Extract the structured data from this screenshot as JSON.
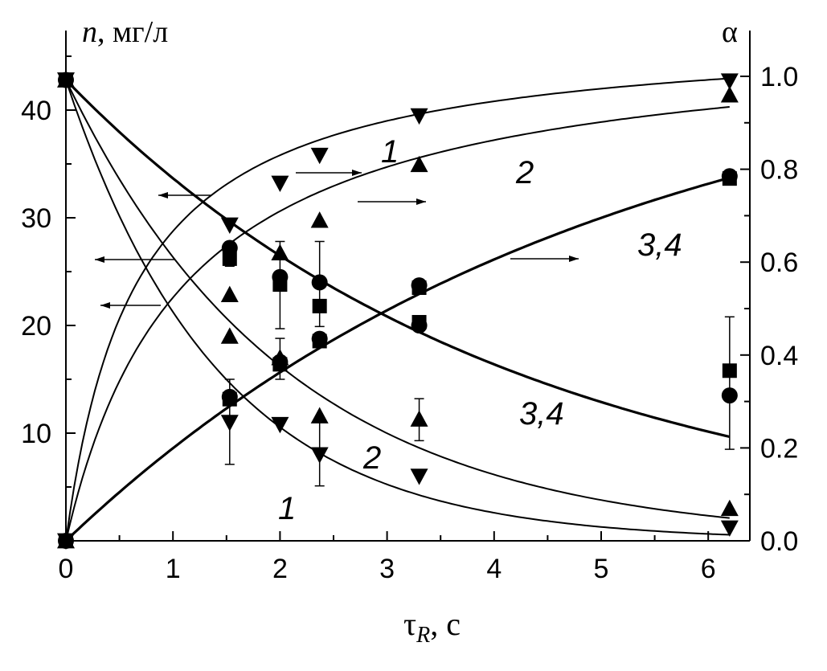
{
  "chart_data": {
    "type": "scatter",
    "title": "",
    "xlabel": {
      "main": "τ",
      "sub": "R",
      "suffix": ", с"
    },
    "ylabel_left": {
      "italic": "n",
      "rest": ", мг/л"
    },
    "ylabel_right": "α",
    "xlim": [
      0,
      6.5
    ],
    "ylim_left": [
      0,
      47
    ],
    "ylim_right": [
      0,
      1.1
    ],
    "x_ticks": [
      "0",
      "1",
      "2",
      "3",
      "4",
      "5",
      "6"
    ],
    "y_left_ticks": [
      "10",
      "20",
      "30",
      "40"
    ],
    "y_right_ticks": [
      "0.0",
      "0.2",
      "0.4",
      "0.6",
      "0.8",
      "1.0"
    ],
    "grid": false,
    "series": [
      {
        "curve": "1",
        "axis": "left",
        "marker": "triangle-down",
        "x": [
          0,
          1.53,
          2.0,
          2.37,
          3.3,
          6.2
        ],
        "y": [
          42.8,
          11.0,
          10.8,
          8.0,
          6.0,
          1.2
        ]
      },
      {
        "curve": "2",
        "axis": "left",
        "marker": "triangle-up",
        "x": [
          0,
          1.53,
          2.0,
          2.37,
          3.3,
          6.2
        ],
        "y": [
          42.8,
          19.0,
          17.0,
          11.6,
          11.3,
          3.0
        ]
      },
      {
        "curve": "3,4",
        "axis": "left",
        "marker": "circle",
        "x": [
          0,
          1.53,
          2.0,
          2.37,
          3.3,
          6.2
        ],
        "y": [
          42.8,
          27.2,
          24.5,
          24.0,
          20.0,
          13.5
        ]
      },
      {
        "curve": "3,4",
        "axis": "left",
        "marker": "square",
        "x": [
          0,
          1.53,
          2.0,
          2.37,
          3.3,
          6.2
        ],
        "y": [
          42.8,
          26.2,
          23.8,
          21.8,
          20.3,
          15.8
        ]
      },
      {
        "curve": "1",
        "axis": "right",
        "marker": "triangle-down",
        "x": [
          0,
          1.53,
          2.0,
          2.37,
          3.3,
          6.2
        ],
        "y": [
          0.0,
          0.68,
          0.77,
          0.83,
          0.915,
          0.99
        ]
      },
      {
        "curve": "2",
        "axis": "right",
        "marker": "triangle-up",
        "x": [
          0,
          1.53,
          2.0,
          2.37,
          3.3,
          6.2
        ],
        "y": [
          0.0,
          0.53,
          0.62,
          0.69,
          0.81,
          0.96
        ]
      },
      {
        "curve": "3,4",
        "axis": "right",
        "marker": "circle",
        "x": [
          0,
          1.53,
          2.0,
          2.37,
          3.3,
          6.2
        ],
        "y": [
          0.0,
          0.31,
          0.385,
          0.435,
          0.55,
          0.785
        ]
      },
      {
        "curve": "3,4",
        "axis": "right",
        "marker": "square",
        "x": [
          0,
          1.53,
          2.0,
          2.37,
          3.3,
          6.2
        ],
        "y": [
          0.0,
          0.305,
          0.38,
          0.43,
          0.545,
          0.78
        ]
      }
    ],
    "fit_curves": {
      "left": [
        {
          "curve": "1",
          "k": 0.7
        },
        {
          "curve": "2",
          "k": 0.485
        },
        {
          "curve": "3,4",
          "k": 0.24
        }
      ],
      "right": [
        {
          "curve": "1",
          "tau": 0.65,
          "mode": "hyperbolic"
        },
        {
          "curve": "2",
          "tau": 1.1,
          "mode": "hyperbolic"
        },
        {
          "curve": "3,4",
          "k": 0.2,
          "mode": "exponential",
          "ymax": 1.1
        }
      ]
    },
    "error_bars": [
      {
        "x": 1.53,
        "lo": 7.1,
        "hi": 15.0
      },
      {
        "x": 1.53,
        "lo": 25.5,
        "hi": 27.2
      },
      {
        "x": 2.0,
        "lo": 19.7,
        "hi": 27.8
      },
      {
        "x": 2.0,
        "lo": 15.0,
        "hi": 18.8
      },
      {
        "x": 2.37,
        "lo": 19.9,
        "hi": 27.8
      },
      {
        "x": 2.37,
        "lo": 5.1,
        "hi": 11.5
      },
      {
        "x": 3.3,
        "lo": 9.3,
        "hi": 13.2
      },
      {
        "x": 6.2,
        "lo": 8.5,
        "hi": 20.8
      }
    ],
    "annotations": [
      "1",
      "2",
      "3,4",
      "1",
      "2",
      "3,4"
    ]
  }
}
